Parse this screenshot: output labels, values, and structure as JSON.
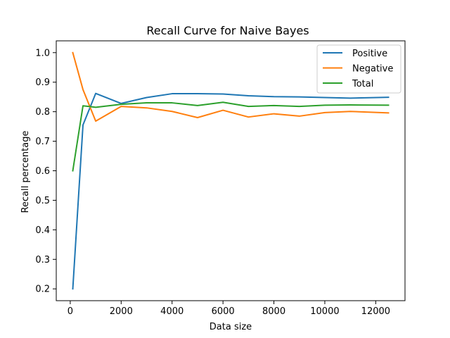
{
  "chart_data": {
    "type": "line",
    "title": "Recall Curve for Naive Bayes",
    "xlabel": "Data size",
    "ylabel": "Recall percentage",
    "xlim": [
      -550,
      13150
    ],
    "ylim": [
      0.16,
      1.04
    ],
    "xticks": [
      0,
      2000,
      4000,
      6000,
      8000,
      10000,
      12000
    ],
    "yticks": [
      0.2,
      0.3,
      0.4,
      0.5,
      0.6,
      0.7,
      0.8,
      0.9,
      1.0
    ],
    "ytick_labels": [
      "0.2",
      "0.3",
      "0.4",
      "0.5",
      "0.6",
      "0.7",
      "0.8",
      "0.9",
      "1.0"
    ],
    "grid": false,
    "legend_position": "top-right",
    "x": [
      100,
      500,
      1000,
      2000,
      3000,
      4000,
      5000,
      6000,
      7000,
      8000,
      9000,
      10000,
      11000,
      12500
    ],
    "series": [
      {
        "name": "Positive",
        "color": "#1f77b4",
        "values": [
          0.2,
          0.755,
          0.862,
          0.828,
          0.848,
          0.861,
          0.861,
          0.86,
          0.854,
          0.851,
          0.85,
          0.848,
          0.846,
          0.849
        ]
      },
      {
        "name": "Negative",
        "color": "#ff7f0e",
        "values": [
          1.0,
          0.875,
          0.768,
          0.818,
          0.813,
          0.801,
          0.78,
          0.805,
          0.782,
          0.793,
          0.785,
          0.797,
          0.801,
          0.796
        ]
      },
      {
        "name": "Total",
        "color": "#2ca02c",
        "values": [
          0.6,
          0.82,
          0.815,
          0.825,
          0.83,
          0.83,
          0.821,
          0.832,
          0.818,
          0.821,
          0.818,
          0.822,
          0.823,
          0.822
        ]
      }
    ]
  }
}
